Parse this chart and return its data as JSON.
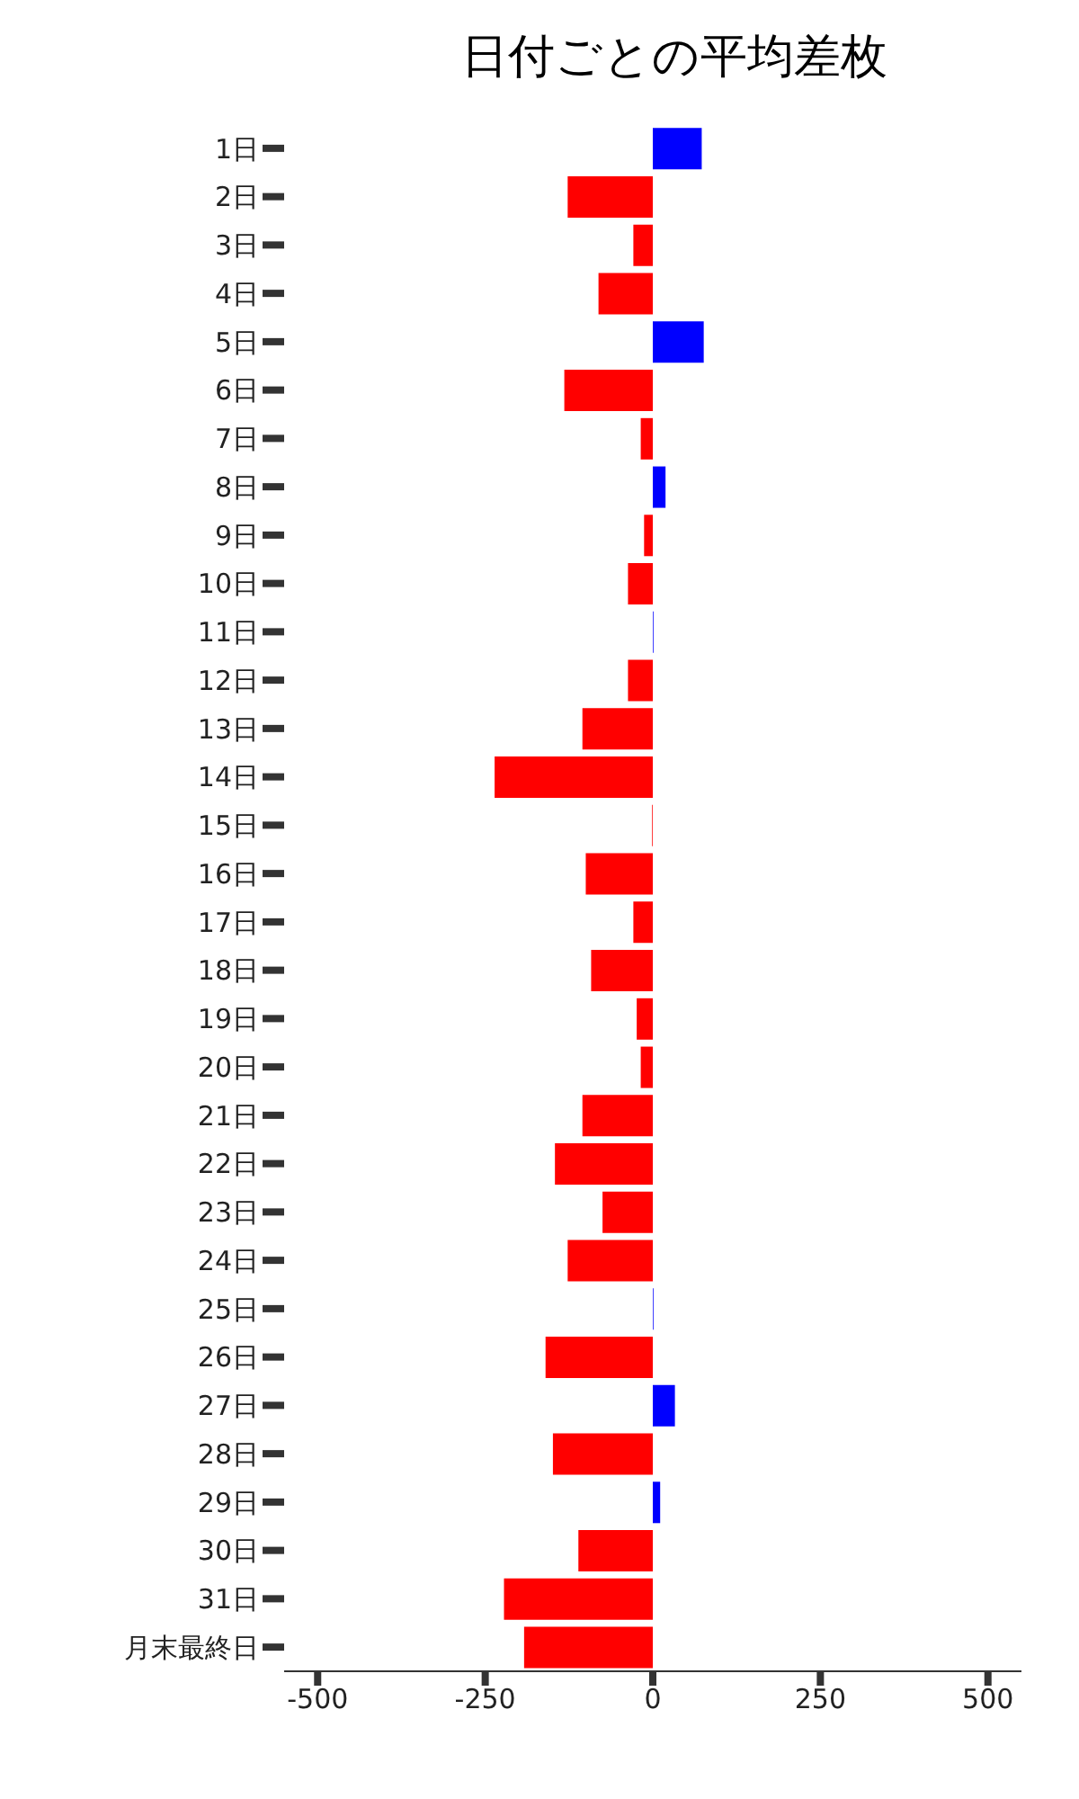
{
  "chart_data": {
    "type": "bar",
    "orientation": "horizontal",
    "title": "日付ごとの平均差枚",
    "categories": [
      "1日",
      "2日",
      "3日",
      "4日",
      "5日",
      "6日",
      "7日",
      "8日",
      "9日",
      "10日",
      "11日",
      "12日",
      "13日",
      "14日",
      "15日",
      "16日",
      "17日",
      "18日",
      "19日",
      "20日",
      "21日",
      "22日",
      "23日",
      "24日",
      "25日",
      "26日",
      "27日",
      "28日",
      "29日",
      "30日",
      "31日",
      "月末最終日"
    ],
    "values": [
      73,
      -127,
      -29,
      -81,
      76,
      -132,
      -18,
      19,
      -13,
      -37,
      1,
      -37,
      -105,
      -236,
      -1,
      -100,
      -29,
      -92,
      -24,
      -18,
      -105,
      -146,
      -75,
      -127,
      1,
      -160,
      33,
      -149,
      11,
      -111,
      -222,
      -192
    ],
    "colors": [
      "#0000ff",
      "#ff0000",
      "#ff0000",
      "#ff0000",
      "#0000ff",
      "#ff0000",
      "#ff0000",
      "#0000ff",
      "#ff0000",
      "#ff0000",
      "#0000ff",
      "#ff0000",
      "#ff0000",
      "#ff0000",
      "#ff0000",
      "#ff0000",
      "#ff0000",
      "#ff0000",
      "#ff0000",
      "#ff0000",
      "#ff0000",
      "#ff0000",
      "#ff0000",
      "#ff0000",
      "#0000ff",
      "#ff0000",
      "#0000ff",
      "#ff0000",
      "#0000ff",
      "#ff0000",
      "#ff0000",
      "#ff0000"
    ],
    "xlim": [
      -550,
      550
    ],
    "xticks": [
      -500,
      -250,
      0,
      250,
      500
    ],
    "grid": false,
    "legend": false
  }
}
